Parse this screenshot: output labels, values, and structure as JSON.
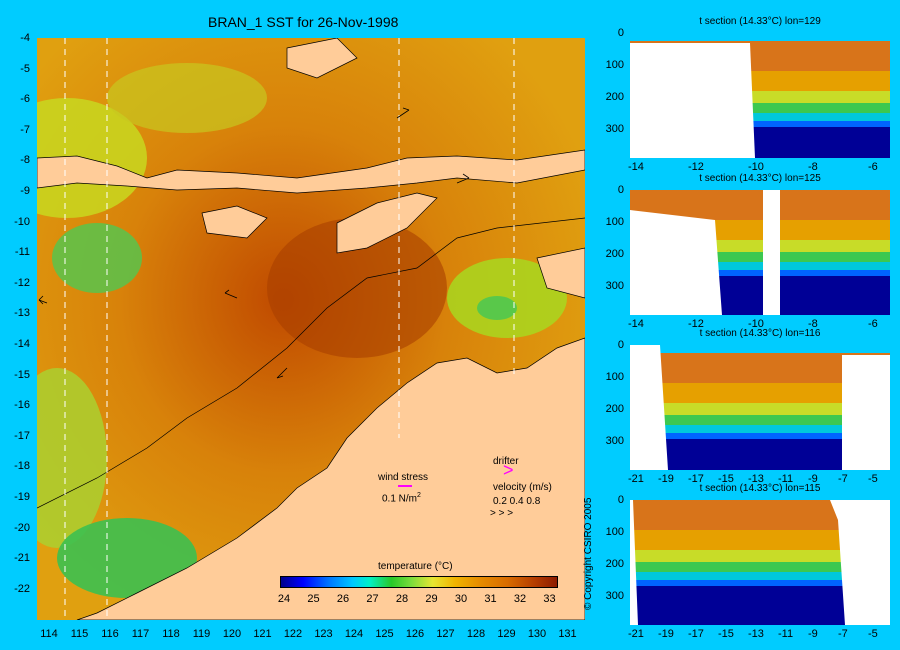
{
  "title": "BRAN_1 SST for 26-Nov-1998",
  "map": {
    "y_ticks": [
      "-4",
      "-5",
      "-6",
      "-7",
      "-8",
      "-9",
      "-10",
      "-11",
      "-12",
      "-13",
      "-14",
      "-15",
      "-16",
      "-17",
      "-18",
      "-19",
      "-20",
      "-21",
      "-22"
    ],
    "x_ticks": [
      "114",
      "115",
      "116",
      "117",
      "118",
      "119",
      "120",
      "121",
      "122",
      "123",
      "124",
      "125",
      "126",
      "127",
      "128",
      "129",
      "130",
      "131"
    ],
    "land_color": "#ffcc99",
    "section_lons": [
      "114.5",
      "115.8",
      "125.5",
      "129.3"
    ]
  },
  "legend": {
    "wind_stress_label": "wind stress",
    "wind_stress_value": "0.1 N/m",
    "wind_stress_superscript": "2",
    "drifter_label": "drifter",
    "velocity_label": "velocity (m/s)",
    "velocity_values": "0.2 0.4 0.8",
    "wind_arrow_color": "#ff00ff",
    "drifter_color": "#ff00ff"
  },
  "colorbar": {
    "title": "temperature (°C)",
    "ticks": [
      "24",
      "25",
      "26",
      "27",
      "28",
      "29",
      "30",
      "31",
      "32",
      "33"
    ]
  },
  "sections": [
    {
      "title": "t section (14.33°C) lon=129",
      "y_ticks": [
        "0",
        "100",
        "200",
        "300"
      ],
      "x_ticks": [
        "-14",
        "-12",
        "-10",
        "-8",
        "-6"
      ]
    },
    {
      "title": "t section (14.33°C) lon=125",
      "y_ticks": [
        "0",
        "100",
        "200",
        "300"
      ],
      "x_ticks": [
        "-14",
        "-12",
        "-10",
        "-8",
        "-6"
      ]
    },
    {
      "title": "t section (14.33°C) lon=116",
      "y_ticks": [
        "0",
        "100",
        "200",
        "300"
      ],
      "x_ticks": [
        "-21",
        "-19",
        "-17",
        "-15",
        "-13",
        "-11",
        "-9",
        "-7",
        "-5"
      ]
    },
    {
      "title": "t section (14.33°C) lon=115",
      "y_ticks": [
        "0",
        "100",
        "200",
        "300"
      ],
      "x_ticks": [
        "-21",
        "-19",
        "-17",
        "-15",
        "-13",
        "-11",
        "-9",
        "-7",
        "-5"
      ]
    }
  ],
  "copyright": "© Copyright CSIRO 2005"
}
